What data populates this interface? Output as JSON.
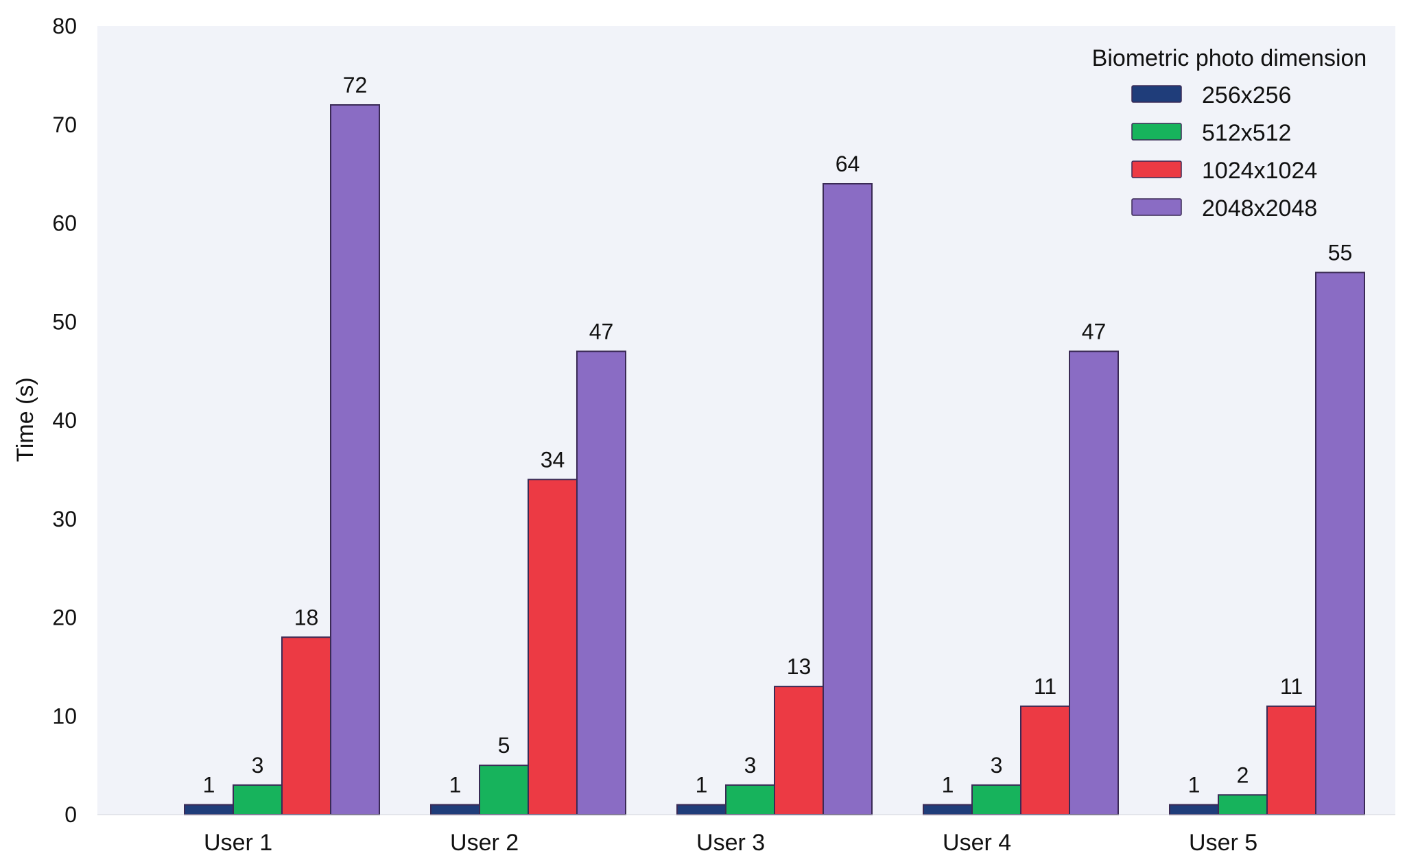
{
  "chart_data": {
    "type": "bar",
    "title": "",
    "xlabel": "",
    "ylabel": "Time (s)",
    "ylim": [
      0,
      80
    ],
    "yticks": [
      0,
      10,
      20,
      30,
      40,
      50,
      60,
      70,
      80
    ],
    "grid": false,
    "legend_position": "top-right",
    "legend_title": "Biometric photo dimension",
    "categories": [
      "User 1",
      "User 2",
      "User 3",
      "User 4",
      "User 5"
    ],
    "series": [
      {
        "name": "256x256",
        "color": "#1f3d7a",
        "values": [
          1,
          1,
          1,
          1,
          1
        ]
      },
      {
        "name": "512x512",
        "color": "#17b35c",
        "values": [
          3,
          5,
          3,
          3,
          2
        ]
      },
      {
        "name": "1024x1024",
        "color": "#ec3a44",
        "values": [
          18,
          34,
          13,
          11,
          11
        ]
      },
      {
        "name": "2048x2048",
        "color": "#8a6cc4",
        "values": [
          72,
          47,
          64,
          47,
          55
        ]
      }
    ],
    "plot_background": "#f1f3f9"
  }
}
